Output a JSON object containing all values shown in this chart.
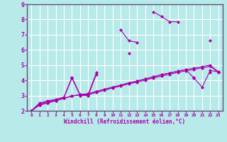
{
  "xlabel": "Windchill (Refroidissement éolien,°C)",
  "bg_color": "#b8eaea",
  "line_color": "#aa00aa",
  "grid_color": "#ffffff",
  "xlim": [
    -0.5,
    23.5
  ],
  "ylim": [
    2.0,
    9.0
  ],
  "xticks": [
    0,
    1,
    2,
    3,
    4,
    5,
    6,
    7,
    8,
    9,
    10,
    11,
    12,
    13,
    14,
    15,
    16,
    17,
    18,
    19,
    20,
    21,
    22,
    23
  ],
  "yticks": [
    2,
    3,
    4,
    5,
    6,
    7,
    8,
    9
  ],
  "series": [
    [
      2.0,
      2.5,
      2.65,
      2.75,
      2.9,
      4.2,
      3.05,
      3.1,
      4.5,
      null,
      null,
      7.3,
      6.6,
      6.5,
      null,
      8.5,
      8.2,
      7.85,
      7.85,
      null,
      null,
      null,
      6.6,
      null
    ],
    [
      2.0,
      2.45,
      2.6,
      2.7,
      2.85,
      4.15,
      3.0,
      3.0,
      4.4,
      null,
      null,
      null,
      5.8,
      null,
      null,
      null,
      null,
      null,
      null,
      null,
      4.2,
      null,
      4.5,
      null
    ],
    [
      2.0,
      2.38,
      2.52,
      2.67,
      2.82,
      2.97,
      3.05,
      3.05,
      3.2,
      3.35,
      3.5,
      3.62,
      3.77,
      3.88,
      4.02,
      4.15,
      4.28,
      4.4,
      4.52,
      4.62,
      4.72,
      4.82,
      4.92,
      4.52
    ],
    [
      2.0,
      2.38,
      2.52,
      2.67,
      2.82,
      2.97,
      3.06,
      3.12,
      3.27,
      3.41,
      3.55,
      3.68,
      3.83,
      3.95,
      4.09,
      4.23,
      4.37,
      4.48,
      4.6,
      4.7,
      4.15,
      3.55,
      4.65,
      4.55
    ],
    [
      2.0,
      2.38,
      2.52,
      2.67,
      2.82,
      2.97,
      3.06,
      3.12,
      3.27,
      3.41,
      3.55,
      3.68,
      3.83,
      3.95,
      4.09,
      4.23,
      4.37,
      4.48,
      4.6,
      4.7,
      4.8,
      4.9,
      5.0,
      4.55
    ]
  ]
}
